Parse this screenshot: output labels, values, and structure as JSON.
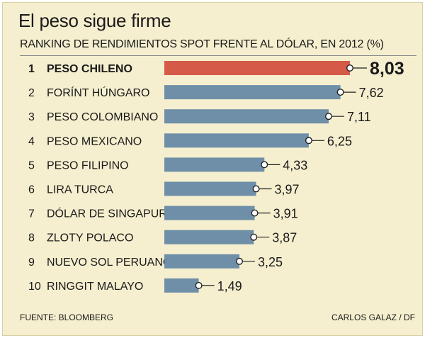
{
  "title": "El peso sigue firme",
  "subtitle": "RANKING DE RENDIMIENTOS SPOT FRENTE AL DÓLAR, EN 2012 (%)",
  "source": "FUENTE: BLOOMBERG",
  "credit": "CARLOS GALAZ / DF",
  "colors": {
    "background": "#f5efcf",
    "highlight_bar": "#d55a47",
    "bar": "#6f8fa8",
    "text": "#1a1a1a"
  },
  "chart_data": {
    "type": "bar",
    "orientation": "horizontal",
    "title": "El peso sigue firme",
    "subtitle": "RANKING DE RENDIMIENTOS SPOT FRENTE AL DÓLAR, EN 2012 (%)",
    "xlabel": "",
    "ylabel": "",
    "xlim": [
      0,
      8.03
    ],
    "grid": false,
    "ranks": [
      "1",
      "2",
      "3",
      "4",
      "5",
      "6",
      "7",
      "8",
      "9",
      "10"
    ],
    "categories": [
      "PESO CHILENO",
      "FORÍNT HÚNGARO",
      "PESO COLOMBIANO",
      "PESO MEXICANO",
      "PESO FILIPINO",
      "LIRA TURCA",
      "DÓLAR DE SINGAPUR",
      "ZLOTY POLACO",
      "NUEVO SOL PERUANO",
      "RINGGIT MALAYO"
    ],
    "values": [
      8.03,
      7.62,
      7.11,
      6.25,
      4.33,
      3.97,
      3.91,
      3.87,
      3.25,
      1.49
    ],
    "value_labels": [
      "8,03",
      "7,62",
      "7,11",
      "6,25",
      "4,33",
      "3,97",
      "3,91",
      "3,87",
      "3,25",
      "1,49"
    ],
    "highlighted_index": 0
  }
}
